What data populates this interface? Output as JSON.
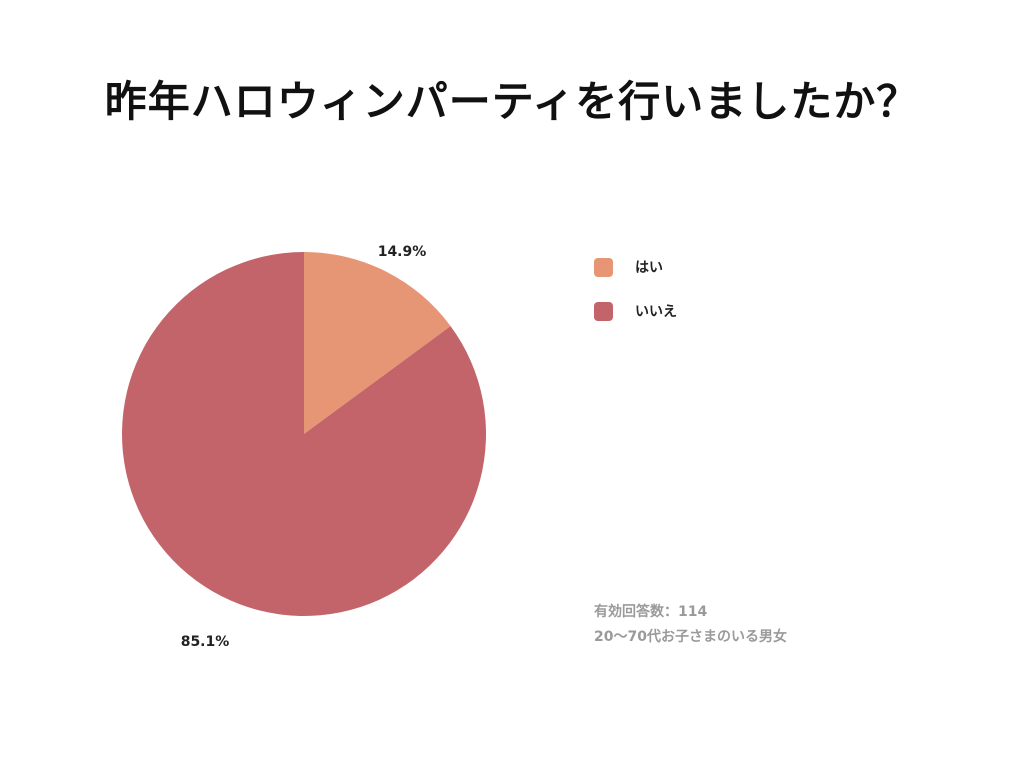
{
  "title": "昨年ハロウィンパーティを行いましたか？",
  "chart_data": {
    "type": "pie",
    "categories": [
      "はい",
      "いいえ"
    ],
    "values": [
      14.9,
      85.1
    ],
    "labels": [
      "14.9%",
      "85.1%"
    ],
    "colors": [
      "#e69575",
      "#c26469"
    ],
    "legend": "right"
  },
  "legend": {
    "items": [
      {
        "label": "はい",
        "color": "#e69575"
      },
      {
        "label": "いいえ",
        "color": "#c26469"
      }
    ]
  },
  "footnote": {
    "line1": "有効回答数：114",
    "line2": "20〜70代お子さまのいる男女"
  }
}
